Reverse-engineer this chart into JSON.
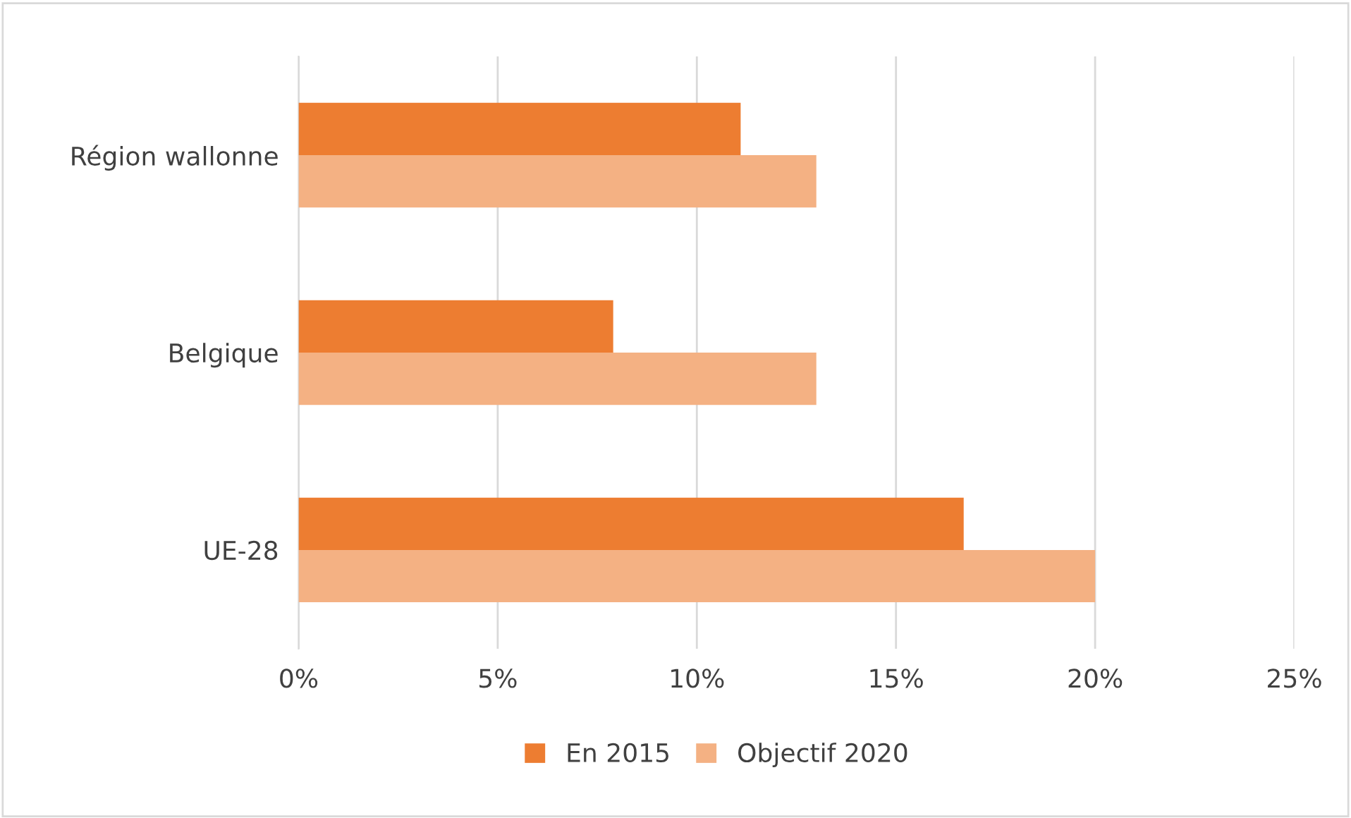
{
  "chart_data": {
    "type": "bar",
    "orientation": "horizontal",
    "categories": [
      "Région wallonne",
      "Belgique",
      "UE-28"
    ],
    "series": [
      {
        "name": "En 2015",
        "color": "#ed7d31",
        "values": [
          11.1,
          7.9,
          16.7
        ]
      },
      {
        "name": "Objectif 2020",
        "color": "#f4b183",
        "values": [
          13.0,
          13.0,
          20.0
        ]
      }
    ],
    "xlim": [
      0,
      25
    ],
    "xticks": [
      {
        "value": 0,
        "label": "0%"
      },
      {
        "value": 5,
        "label": "5%"
      },
      {
        "value": 10,
        "label": "10%"
      },
      {
        "value": 15,
        "label": "15%"
      },
      {
        "value": 20,
        "label": "20%"
      },
      {
        "value": 25,
        "label": "25%"
      }
    ],
    "grid": "x",
    "legend": "bottom"
  }
}
